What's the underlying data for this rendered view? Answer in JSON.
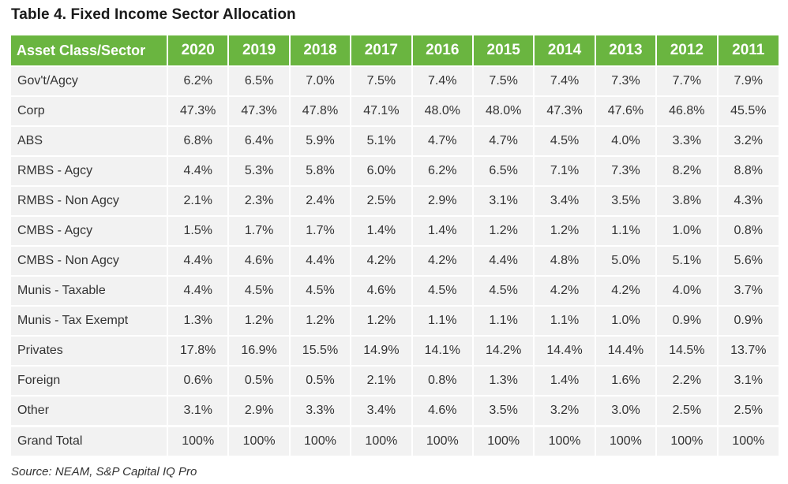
{
  "title": "Table 4. Fixed Income Sector Allocation",
  "table": {
    "header": {
      "class_label": "Asset Class/Sector",
      "years": [
        "2020",
        "2019",
        "2018",
        "2017",
        "2016",
        "2015",
        "2014",
        "2013",
        "2012",
        "2011"
      ]
    },
    "rows": [
      {
        "label": "Gov't/Agcy",
        "values": [
          "6.2%",
          "6.5%",
          "7.0%",
          "7.5%",
          "7.4%",
          "7.5%",
          "7.4%",
          "7.3%",
          "7.7%",
          "7.9%"
        ]
      },
      {
        "label": "Corp",
        "values": [
          "47.3%",
          "47.3%",
          "47.8%",
          "47.1%",
          "48.0%",
          "48.0%",
          "47.3%",
          "47.6%",
          "46.8%",
          "45.5%"
        ]
      },
      {
        "label": "ABS",
        "values": [
          "6.8%",
          "6.4%",
          "5.9%",
          "5.1%",
          "4.7%",
          "4.7%",
          "4.5%",
          "4.0%",
          "3.3%",
          "3.2%"
        ]
      },
      {
        "label": "RMBS - Agcy",
        "values": [
          "4.4%",
          "5.3%",
          "5.8%",
          "6.0%",
          "6.2%",
          "6.5%",
          "7.1%",
          "7.3%",
          "8.2%",
          "8.8%"
        ]
      },
      {
        "label": "RMBS - Non Agcy",
        "values": [
          "2.1%",
          "2.3%",
          "2.4%",
          "2.5%",
          "2.9%",
          "3.1%",
          "3.4%",
          "3.5%",
          "3.8%",
          "4.3%"
        ]
      },
      {
        "label": "CMBS - Agcy",
        "values": [
          "1.5%",
          "1.7%",
          "1.7%",
          "1.4%",
          "1.4%",
          "1.2%",
          "1.2%",
          "1.1%",
          "1.0%",
          "0.8%"
        ]
      },
      {
        "label": "CMBS - Non Agcy",
        "values": [
          "4.4%",
          "4.6%",
          "4.4%",
          "4.2%",
          "4.2%",
          "4.4%",
          "4.8%",
          "5.0%",
          "5.1%",
          "5.6%"
        ]
      },
      {
        "label": "Munis - Taxable",
        "values": [
          "4.4%",
          "4.5%",
          "4.5%",
          "4.6%",
          "4.5%",
          "4.5%",
          "4.2%",
          "4.2%",
          "4.0%",
          "3.7%"
        ]
      },
      {
        "label": "Munis - Tax Exempt",
        "values": [
          "1.3%",
          "1.2%",
          "1.2%",
          "1.2%",
          "1.1%",
          "1.1%",
          "1.1%",
          "1.0%",
          "0.9%",
          "0.9%"
        ]
      },
      {
        "label": "Privates",
        "values": [
          "17.8%",
          "16.9%",
          "15.5%",
          "14.9%",
          "14.1%",
          "14.2%",
          "14.4%",
          "14.4%",
          "14.5%",
          "13.7%"
        ]
      },
      {
        "label": "Foreign",
        "values": [
          "0.6%",
          "0.5%",
          "0.5%",
          "2.1%",
          "0.8%",
          "1.3%",
          "1.4%",
          "1.6%",
          "2.2%",
          "3.1%"
        ]
      },
      {
        "label": "Other",
        "values": [
          "3.1%",
          "2.9%",
          "3.3%",
          "3.4%",
          "4.6%",
          "3.5%",
          "3.2%",
          "3.0%",
          "2.5%",
          "2.5%"
        ]
      },
      {
        "label": "Grand Total",
        "values": [
          "100%",
          "100%",
          "100%",
          "100%",
          "100%",
          "100%",
          "100%",
          "100%",
          "100%",
          "100%"
        ]
      }
    ]
  },
  "source": "Source: NEAM, S&P Capital IQ Pro",
  "colors": {
    "header_bg": "#6ab540",
    "row_bg": "#f2f2f2"
  }
}
